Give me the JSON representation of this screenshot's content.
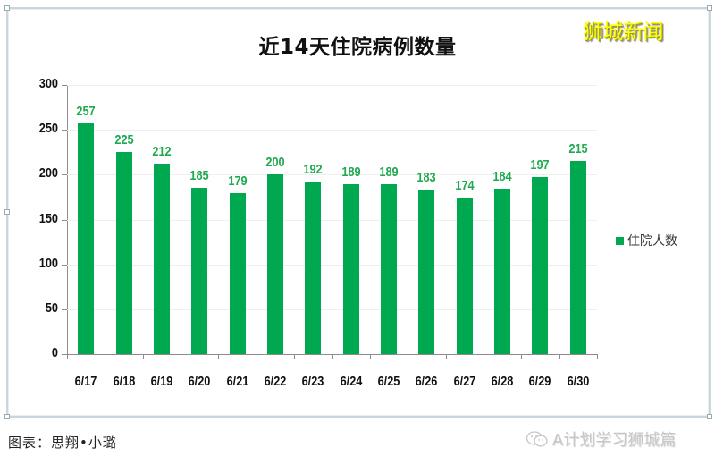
{
  "title": "近14天住院病例数量",
  "brand": "狮城新闻",
  "credit": "图表：思翔•小璐",
  "watermark": {
    "icon": "wechat-icon",
    "text": "A计划学习狮城篇"
  },
  "colors": {
    "bar": "#00a94f",
    "value_label": "#1faa50",
    "brand": "#ffff00",
    "axis": "#8c8c8c",
    "grid": "#eeeeee"
  },
  "legend": {
    "label": "住院人数"
  },
  "y_axis": {
    "ticks": [
      "0",
      "50",
      "100",
      "150",
      "200",
      "250",
      "300"
    ]
  },
  "chart_data": {
    "type": "bar",
    "title": "近14天住院病例数量",
    "xlabel": "",
    "ylabel": "",
    "categories": [
      "6/17",
      "6/18",
      "6/19",
      "6/20",
      "6/21",
      "6/22",
      "6/23",
      "6/24",
      "6/25",
      "6/26",
      "6/27",
      "6/28",
      "6/29",
      "6/30"
    ],
    "series": [
      {
        "name": "住院人数",
        "values": [
          257,
          225,
          212,
          185,
          179,
          200,
          192,
          189,
          189,
          183,
          174,
          184,
          197,
          215
        ]
      }
    ],
    "ylim": [
      0,
      300
    ],
    "yticks": [
      0,
      50,
      100,
      150,
      200,
      250,
      300
    ],
    "grid": true,
    "legend_position": "right",
    "data_labels": true
  }
}
